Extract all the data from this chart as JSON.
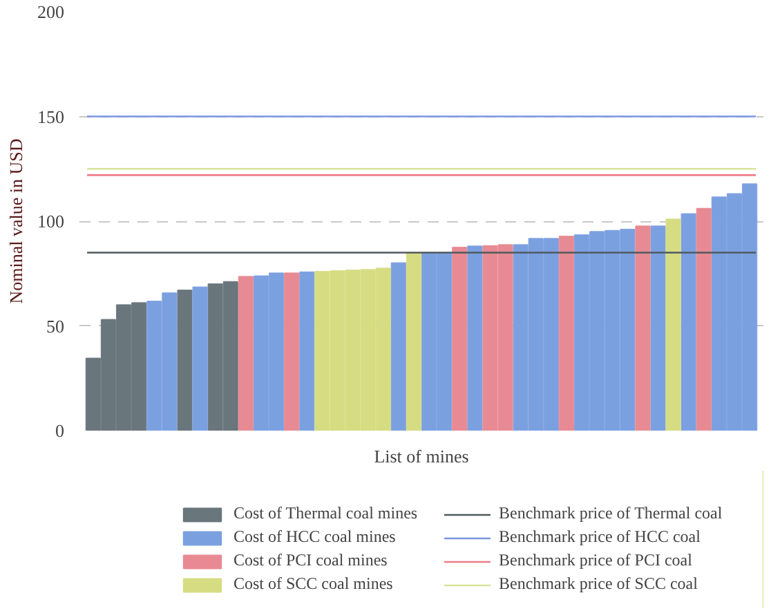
{
  "chart_data": {
    "type": "bar",
    "xlabel": "List of mines",
    "ylabel": "Nominal value in USD",
    "categories": [
      null,
      null,
      null,
      null,
      null,
      null,
      null,
      null,
      null,
      null,
      null,
      null,
      null,
      null,
      null,
      null,
      null,
      null,
      null,
      null,
      null,
      null,
      null,
      null,
      null,
      null,
      null,
      null,
      null,
      null,
      null,
      null,
      null,
      null,
      null,
      null,
      null,
      null,
      null,
      null,
      null,
      null,
      null,
      null
    ],
    "series": [
      {
        "name": "Cost of Thermal coal mines",
        "color": "#69767c",
        "values": [
          34.5,
          53,
          60,
          61,
          null,
          null,
          67,
          null,
          70,
          71,
          null,
          null,
          null,
          null,
          null,
          null,
          null,
          null,
          null,
          null,
          null,
          null,
          null,
          null,
          null,
          null,
          null,
          null,
          null,
          null,
          null,
          null,
          null,
          null,
          null,
          null,
          null,
          null,
          null,
          null,
          null,
          null,
          null,
          null
        ]
      },
      {
        "name": "Cost of HCC coal mines",
        "color": "#7ba0e0",
        "values": [
          null,
          null,
          null,
          null,
          61.7,
          65.7,
          null,
          68.5,
          null,
          null,
          null,
          73.8,
          75.2,
          null,
          75.7,
          null,
          null,
          null,
          null,
          null,
          80,
          null,
          84.9,
          84.9,
          null,
          88,
          null,
          null,
          88.7,
          91.7,
          91.7,
          null,
          93.4,
          95,
          95.5,
          96,
          null,
          97.6,
          null,
          103.5,
          null,
          111.5,
          113,
          117.7
        ]
      },
      {
        "name": "Cost of PCI coal mines",
        "color": "#e88a93",
        "values": [
          null,
          null,
          null,
          null,
          null,
          null,
          null,
          null,
          null,
          null,
          73.5,
          null,
          null,
          75.2,
          null,
          null,
          null,
          null,
          null,
          null,
          null,
          null,
          null,
          null,
          87.5,
          null,
          88.2,
          88.7,
          null,
          null,
          null,
          92.7,
          null,
          null,
          null,
          null,
          97.6,
          null,
          null,
          null,
          106,
          null,
          null,
          null
        ]
      },
      {
        "name": "Cost of SCC coal mines",
        "color": "#d6dc82",
        "values": [
          null,
          null,
          null,
          null,
          null,
          null,
          null,
          null,
          null,
          null,
          null,
          null,
          null,
          null,
          null,
          75.9,
          76.2,
          76.6,
          76.8,
          77.5,
          null,
          85,
          null,
          null,
          null,
          null,
          null,
          null,
          null,
          null,
          null,
          null,
          null,
          null,
          null,
          null,
          null,
          null,
          100.9,
          null,
          null,
          null,
          null,
          null
        ]
      }
    ],
    "ref_lines": [
      {
        "axis": "y",
        "value": 85,
        "label": "Benchmark price of Thermal coal",
        "color": "#4f5a5f"
      },
      {
        "axis": "y",
        "value": 150,
        "label": "Benchmark price of HCC coal",
        "color": "#7b95e0"
      },
      {
        "axis": "y",
        "value": 122,
        "label": "Benchmark price of PCI coal",
        "color": "#ef7d89"
      },
      {
        "axis": "y",
        "value": 125,
        "label": "Benchmark price of SCC coal",
        "color": "#d9e39a"
      }
    ],
    "ylim": [
      0,
      200
    ],
    "yticks": [
      0,
      50,
      100,
      150,
      200
    ],
    "grid": "y",
    "legend": "bottom"
  }
}
